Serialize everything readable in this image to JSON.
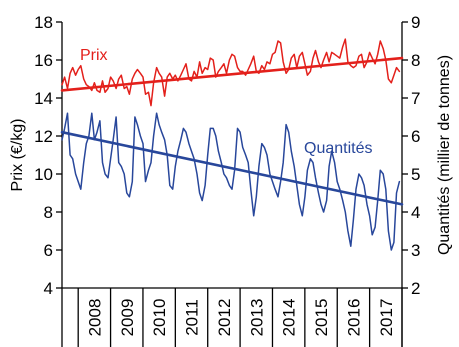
{
  "chart_data": {
    "type": "line",
    "xlabel": "",
    "ylabel_left": "Prix (€/kg)",
    "ylabel_right": "Quantités (millier de tonnes)",
    "xlim": [
      2007.5,
      2018.0
    ],
    "ylim_left": [
      4,
      18
    ],
    "ylim_right": [
      2,
      9
    ],
    "yticks_left": [
      "4",
      "6",
      "8",
      "10",
      "12",
      "14",
      "16",
      "18"
    ],
    "yticks_right": [
      "2",
      "3",
      "4",
      "5",
      "6",
      "7",
      "8",
      "9"
    ],
    "years": [
      "2008",
      "2009",
      "2010",
      "2011",
      "2012",
      "2013",
      "2014",
      "2015",
      "2016",
      "2017"
    ],
    "grid": false,
    "colors": {
      "price": "#e3201b",
      "quantity": "#28479b",
      "axis": "#000000"
    },
    "series": [
      {
        "name": "Prix",
        "axis": "left",
        "color": "#e3201b",
        "x": [
          2007.5,
          2007.58,
          2007.67,
          2007.75,
          2007.83,
          2007.92,
          2008.0,
          2008.08,
          2008.17,
          2008.25,
          2008.33,
          2008.42,
          2008.5,
          2008.58,
          2008.67,
          2008.75,
          2008.83,
          2008.92,
          2009.0,
          2009.08,
          2009.17,
          2009.25,
          2009.33,
          2009.42,
          2009.5,
          2009.58,
          2009.67,
          2009.75,
          2009.83,
          2009.92,
          2010.0,
          2010.08,
          2010.17,
          2010.25,
          2010.33,
          2010.42,
          2010.5,
          2010.58,
          2010.67,
          2010.75,
          2010.83,
          2010.92,
          2011.0,
          2011.08,
          2011.17,
          2011.25,
          2011.33,
          2011.42,
          2011.5,
          2011.58,
          2011.67,
          2011.75,
          2011.83,
          2011.92,
          2012.0,
          2012.08,
          2012.17,
          2012.25,
          2012.33,
          2012.42,
          2012.5,
          2012.58,
          2012.67,
          2012.75,
          2012.83,
          2012.92,
          2013.0,
          2013.08,
          2013.17,
          2013.25,
          2013.33,
          2013.42,
          2013.5,
          2013.58,
          2013.67,
          2013.75,
          2013.83,
          2013.92,
          2014.0,
          2014.08,
          2014.17,
          2014.25,
          2014.33,
          2014.42,
          2014.5,
          2014.58,
          2014.67,
          2014.75,
          2014.83,
          2014.92,
          2015.0,
          2015.08,
          2015.17,
          2015.25,
          2015.33,
          2015.42,
          2015.5,
          2015.58,
          2015.67,
          2015.75,
          2015.83,
          2015.92,
          2016.0,
          2016.08,
          2016.17,
          2016.25,
          2016.33,
          2016.42,
          2016.5,
          2016.58,
          2016.67,
          2016.75,
          2016.83,
          2016.92,
          2017.0,
          2017.08,
          2017.17,
          2017.25,
          2017.33,
          2017.42,
          2017.5,
          2017.58,
          2017.67,
          2017.75,
          2017.83,
          2017.92
        ],
        "values": [
          14.7,
          15.1,
          14.5,
          15.3,
          15.6,
          15.2,
          15.5,
          15.7,
          15.0,
          14.7,
          14.6,
          14.4,
          14.8,
          14.4,
          14.3,
          14.9,
          14.3,
          14.5,
          15.1,
          14.9,
          14.5,
          15.0,
          15.2,
          14.5,
          14.6,
          14.2,
          15.0,
          15.3,
          15.5,
          15.3,
          15.1,
          14.2,
          14.3,
          13.6,
          14.8,
          15.6,
          15.3,
          15.1,
          14.1,
          15.1,
          15.3,
          15.0,
          15.2,
          14.9,
          15.2,
          15.5,
          15.8,
          15.0,
          14.9,
          15.4,
          15.1,
          15.9,
          15.3,
          15.6,
          15.5,
          16.1,
          16.0,
          15.1,
          15.4,
          15.6,
          15.8,
          15.3,
          16.0,
          16.3,
          16.2,
          15.6,
          15.4,
          15.4,
          15.2,
          15.5,
          15.8,
          16.2,
          15.4,
          15.3,
          15.7,
          15.5,
          15.9,
          15.8,
          16.3,
          16.4,
          17.0,
          16.9,
          15.9,
          15.3,
          15.5,
          16.1,
          16.3,
          15.6,
          16.2,
          16.4,
          15.8,
          15.2,
          15.4,
          16.1,
          16.5,
          15.9,
          15.6,
          16.0,
          16.4,
          15.9,
          16.4,
          16.3,
          16.2,
          16.1,
          16.7,
          17.1,
          15.9,
          15.7,
          15.6,
          15.7,
          16.2,
          16.3,
          15.6,
          15.9,
          16.4,
          16.1,
          15.8,
          16.3,
          17.0,
          16.6,
          16.0,
          15.0,
          14.8,
          15.2,
          15.6,
          15.4
        ]
      },
      {
        "name": "Quantités",
        "axis": "right",
        "color": "#28479b",
        "x": [
          2007.5,
          2007.58,
          2007.67,
          2007.75,
          2007.83,
          2007.92,
          2008.0,
          2008.08,
          2008.17,
          2008.25,
          2008.33,
          2008.42,
          2008.5,
          2008.58,
          2008.67,
          2008.75,
          2008.83,
          2008.92,
          2009.0,
          2009.08,
          2009.17,
          2009.25,
          2009.33,
          2009.42,
          2009.5,
          2009.58,
          2009.67,
          2009.75,
          2009.83,
          2009.92,
          2010.0,
          2010.08,
          2010.17,
          2010.25,
          2010.33,
          2010.42,
          2010.5,
          2010.58,
          2010.67,
          2010.75,
          2010.83,
          2010.92,
          2011.0,
          2011.08,
          2011.17,
          2011.25,
          2011.33,
          2011.42,
          2011.5,
          2011.58,
          2011.67,
          2011.75,
          2011.83,
          2011.92,
          2012.0,
          2012.08,
          2012.17,
          2012.25,
          2012.33,
          2012.42,
          2012.5,
          2012.58,
          2012.67,
          2012.75,
          2012.83,
          2012.92,
          2013.0,
          2013.08,
          2013.17,
          2013.25,
          2013.33,
          2013.42,
          2013.5,
          2013.58,
          2013.67,
          2013.75,
          2013.83,
          2013.92,
          2014.0,
          2014.08,
          2014.17,
          2014.25,
          2014.33,
          2014.42,
          2014.5,
          2014.58,
          2014.67,
          2014.75,
          2014.83,
          2014.92,
          2015.0,
          2015.08,
          2015.17,
          2015.25,
          2015.33,
          2015.42,
          2015.5,
          2015.58,
          2015.67,
          2015.75,
          2015.83,
          2015.92,
          2016.0,
          2016.08,
          2016.17,
          2016.25,
          2016.33,
          2016.42,
          2016.5,
          2016.58,
          2016.67,
          2016.75,
          2016.83,
          2016.92,
          2017.0,
          2017.08,
          2017.17,
          2017.25,
          2017.33,
          2017.42,
          2017.5,
          2017.58,
          2017.67,
          2017.75,
          2017.83,
          2017.92
        ],
        "values": [
          5.9,
          6.2,
          6.6,
          5.5,
          5.4,
          5.0,
          4.8,
          4.6,
          5.3,
          5.8,
          6.0,
          6.6,
          5.9,
          6.1,
          6.4,
          5.3,
          5.0,
          4.9,
          5.4,
          5.9,
          6.5,
          5.3,
          5.2,
          5.0,
          4.5,
          4.4,
          4.8,
          6.5,
          6.3,
          6.0,
          5.8,
          4.8,
          5.1,
          5.3,
          6.0,
          6.6,
          6.3,
          6.1,
          5.9,
          5.5,
          4.7,
          4.6,
          5.2,
          5.6,
          5.9,
          6.2,
          6.1,
          5.8,
          5.6,
          5.4,
          5.0,
          4.5,
          4.3,
          4.7,
          5.5,
          6.2,
          6.2,
          6.0,
          5.6,
          5.3,
          5.0,
          4.9,
          4.7,
          4.6,
          5.1,
          6.2,
          6.1,
          5.7,
          5.5,
          5.3,
          4.6,
          3.9,
          4.4,
          5.2,
          5.8,
          5.7,
          5.5,
          5.0,
          4.8,
          4.6,
          4.4,
          4.8,
          5.3,
          6.3,
          6.1,
          5.6,
          5.2,
          4.7,
          4.2,
          3.9,
          4.4,
          5.1,
          5.4,
          5.3,
          4.9,
          4.5,
          4.2,
          4.0,
          4.3,
          5.2,
          5.6,
          5.3,
          4.8,
          4.6,
          4.3,
          4.0,
          3.5,
          3.1,
          3.8,
          4.6,
          5.0,
          4.9,
          4.7,
          4.2,
          3.9,
          3.4,
          3.6,
          4.3,
          5.1,
          5.0,
          4.6,
          3.5,
          3.0,
          3.2,
          4.5,
          4.8
        ]
      },
      {
        "name": "",
        "axis": "left",
        "color": "#e3201b",
        "x": [
          2007.5,
          2018.0
        ],
        "values": [
          14.4,
          16.1
        ]
      },
      {
        "name": "",
        "axis": "right",
        "color": "#28479b",
        "x": [
          2007.5,
          2018.0
        ],
        "values": [
          6.1,
          4.2
        ]
      }
    ],
    "annotations": [
      {
        "text": "Prix",
        "series": 0
      },
      {
        "text": "Quantités",
        "series": 1
      }
    ]
  }
}
